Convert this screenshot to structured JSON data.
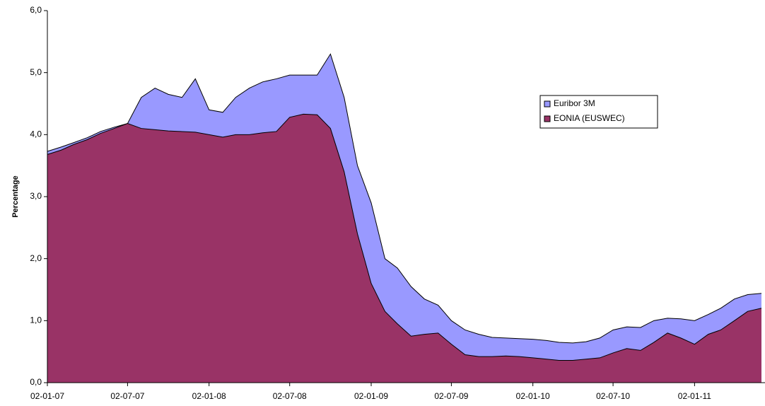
{
  "chart_data": {
    "type": "area",
    "y_label": "Percentage",
    "x": [
      "02-01-07",
      "02-02-07",
      "02-03-07",
      "02-04-07",
      "02-05-07",
      "02-06-07",
      "02-07-07",
      "02-08-07",
      "02-09-07",
      "02-10-07",
      "02-11-07",
      "02-12-07",
      "02-01-08",
      "02-02-08",
      "02-03-08",
      "02-04-08",
      "02-05-08",
      "02-06-08",
      "02-07-08",
      "02-08-08",
      "02-09-08",
      "02-10-08",
      "02-11-08",
      "02-12-08",
      "02-01-09",
      "02-02-09",
      "02-03-09",
      "02-04-09",
      "02-05-09",
      "02-06-09",
      "02-07-09",
      "02-08-09",
      "02-09-09",
      "02-10-09",
      "02-11-09",
      "02-12-09",
      "02-01-10",
      "02-02-10",
      "02-03-10",
      "02-04-10",
      "02-05-10",
      "02-06-10",
      "02-07-10",
      "02-08-10",
      "02-09-10",
      "02-10-10",
      "02-11-10",
      "02-12-10",
      "02-01-11",
      "02-02-11",
      "02-03-11",
      "02-04-11",
      "02-05-11",
      "02-06-11"
    ],
    "series": [
      {
        "name": "Euribor 3M",
        "color": "#9999ff",
        "values": [
          3.73,
          3.8,
          3.87,
          3.95,
          4.05,
          4.12,
          4.18,
          4.6,
          4.75,
          4.65,
          4.6,
          4.9,
          4.4,
          4.36,
          4.6,
          4.75,
          4.85,
          4.9,
          4.96,
          4.96,
          4.96,
          5.3,
          4.6,
          3.5,
          2.9,
          2.0,
          1.85,
          1.55,
          1.35,
          1.25,
          1.0,
          0.85,
          0.78,
          0.73,
          0.72,
          0.71,
          0.7,
          0.68,
          0.65,
          0.64,
          0.66,
          0.72,
          0.85,
          0.9,
          0.89,
          1.0,
          1.04,
          1.03,
          1.0,
          1.1,
          1.2,
          1.35,
          1.42,
          1.44
        ]
      },
      {
        "name": "EONIA (EUSWEC)",
        "color": "#993366",
        "values": [
          3.68,
          3.75,
          3.84,
          3.92,
          4.02,
          4.1,
          4.18,
          4.1,
          4.08,
          4.06,
          4.05,
          4.04,
          4.0,
          3.96,
          4.0,
          4.0,
          4.03,
          4.05,
          4.28,
          4.33,
          4.32,
          4.1,
          3.4,
          2.4,
          1.6,
          1.15,
          0.95,
          0.75,
          0.78,
          0.8,
          0.62,
          0.45,
          0.42,
          0.42,
          0.43,
          0.42,
          0.4,
          0.38,
          0.36,
          0.36,
          0.38,
          0.4,
          0.48,
          0.55,
          0.52,
          0.65,
          0.8,
          0.72,
          0.62,
          0.78,
          0.85,
          1.0,
          1.15,
          1.2
        ]
      }
    ],
    "xlim": [
      "02-01-07",
      "10-06-11"
    ],
    "xticks": [
      "02-01-07",
      "02-07-07",
      "02-01-08",
      "02-07-08",
      "02-01-09",
      "02-07-09",
      "02-01-10",
      "02-07-10",
      "02-01-11"
    ],
    "ylim": [
      0,
      6
    ],
    "yticks": [
      {
        "value": 0,
        "label": "0,0"
      },
      {
        "value": 1,
        "label": "1,0"
      },
      {
        "value": 2,
        "label": "2,0"
      },
      {
        "value": 3,
        "label": "3,0"
      },
      {
        "value": 4,
        "label": "4,0"
      },
      {
        "value": 5,
        "label": "5,0"
      },
      {
        "value": 6,
        "label": "6,0"
      }
    ],
    "legend": "right"
  }
}
